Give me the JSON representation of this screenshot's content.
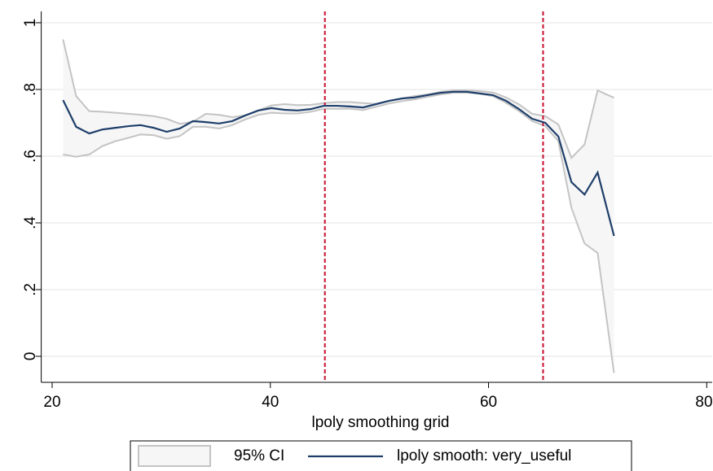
{
  "chart_data": {
    "type": "lpoly",
    "x_label": "lpoly smoothing grid",
    "x": [
      21.0,
      22.2,
      23.4,
      24.6,
      25.8,
      27.0,
      28.1,
      29.3,
      30.5,
      31.7,
      32.9,
      34.1,
      35.3,
      36.5,
      37.7,
      38.9,
      40.1,
      41.3,
      42.5,
      43.7,
      44.9,
      46.1,
      47.3,
      48.5,
      49.7,
      50.9,
      52.1,
      53.2,
      54.4,
      55.6,
      56.8,
      58.0,
      59.2,
      60.4,
      61.6,
      62.8,
      64.0,
      65.2,
      66.4,
      67.6,
      68.8,
      70.0,
      71.5
    ],
    "series": [
      {
        "name": "95% CI",
        "color": "#f6f6f6",
        "line_color": "#c4c4c4",
        "upper": [
          0.95,
          0.78,
          0.735,
          0.733,
          0.73,
          0.727,
          0.724,
          0.72,
          0.712,
          0.697,
          0.703,
          0.727,
          0.724,
          0.717,
          0.722,
          0.737,
          0.752,
          0.756,
          0.753,
          0.754,
          0.759,
          0.762,
          0.762,
          0.759,
          0.757,
          0.766,
          0.773,
          0.78,
          0.785,
          0.793,
          0.797,
          0.797,
          0.795,
          0.791,
          0.776,
          0.755,
          0.727,
          0.72,
          0.695,
          0.595,
          0.635,
          0.797,
          0.775
        ],
        "lower": [
          0.605,
          0.598,
          0.605,
          0.63,
          0.645,
          0.655,
          0.665,
          0.663,
          0.652,
          0.66,
          0.688,
          0.688,
          0.683,
          0.693,
          0.71,
          0.724,
          0.73,
          0.728,
          0.728,
          0.733,
          0.742,
          0.742,
          0.742,
          0.738,
          0.748,
          0.758,
          0.765,
          0.77,
          0.778,
          0.785,
          0.79,
          0.79,
          0.787,
          0.78,
          0.76,
          0.735,
          0.705,
          0.69,
          0.645,
          0.445,
          0.338,
          0.31,
          -0.05
        ]
      },
      {
        "name": "lpoly smooth: very_useful",
        "color": "#1f3f6b",
        "values": [
          0.768,
          0.688,
          0.668,
          0.68,
          0.685,
          0.69,
          0.693,
          0.685,
          0.673,
          0.683,
          0.705,
          0.702,
          0.698,
          0.705,
          0.722,
          0.737,
          0.744,
          0.739,
          0.737,
          0.741,
          0.751,
          0.751,
          0.749,
          0.746,
          0.756,
          0.766,
          0.773,
          0.776,
          0.783,
          0.79,
          0.793,
          0.793,
          0.788,
          0.783,
          0.766,
          0.741,
          0.712,
          0.7,
          0.659,
          0.522,
          0.485,
          0.551,
          0.361
        ]
      }
    ],
    "reference_lines": {
      "values": [
        45,
        65
      ],
      "color": "#c8102e"
    },
    "xlim": [
      19,
      80.5
    ],
    "xticks": [
      20,
      40,
      60,
      80
    ],
    "ylim": [
      -0.078,
      1.034
    ],
    "yticks": [
      0,
      {
        "value": 0.2,
        "label": ".2"
      },
      {
        "value": 0.4,
        "label": ".4"
      },
      {
        "value": 0.6,
        "label": ".6"
      },
      {
        "value": 0.8,
        "label": ".8"
      },
      1
    ],
    "grid": true
  }
}
